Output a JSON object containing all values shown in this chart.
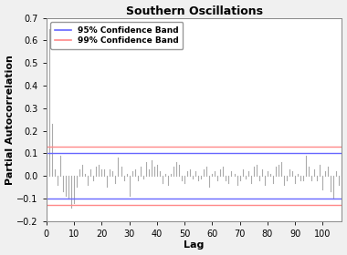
{
  "title": "Southern Oscillations",
  "xlabel": "Lag",
  "ylabel": "Partial Autocorrelation",
  "ylim": [
    -0.2,
    0.7
  ],
  "xlim": [
    0,
    107
  ],
  "yticks": [
    -0.2,
    -0.1,
    0.0,
    0.1,
    0.2,
    0.3,
    0.4,
    0.5,
    0.6,
    0.7
  ],
  "xticks": [
    0,
    10,
    20,
    30,
    40,
    50,
    60,
    70,
    80,
    90,
    100
  ],
  "conf_95": 0.1,
  "conf_99": 0.13,
  "conf_95_color": "#6666ff",
  "conf_99_color": "#ff8888",
  "bar_color": "#aaaaaa",
  "bg_color": "#f0f0f0",
  "plot_bg": "#ffffff",
  "title_fontsize": 9,
  "label_fontsize": 8,
  "tick_fontsize": 7,
  "pacf_values": [
    0.65,
    0.23,
    0.03,
    -0.04,
    0.09,
    -0.07,
    -0.09,
    -0.1,
    -0.14,
    -0.12,
    -0.05,
    0.03,
    0.05,
    0.01,
    -0.04,
    0.03,
    -0.02,
    0.04,
    0.05,
    0.03,
    0.03,
    -0.05,
    0.03,
    0.02,
    -0.03,
    0.08,
    0.04,
    -0.02,
    0.01,
    -0.09,
    0.02,
    0.03,
    -0.02,
    0.04,
    -0.01,
    0.06,
    0.03,
    0.07,
    0.04,
    0.05,
    0.02,
    -0.03,
    0.01,
    -0.04,
    0.01,
    0.04,
    0.06,
    0.05,
    -0.02,
    -0.03,
    0.02,
    0.03,
    -0.01,
    0.02,
    -0.02,
    -0.01,
    0.03,
    0.04,
    -0.05,
    0.01,
    0.02,
    -0.02,
    0.03,
    0.04,
    -0.02,
    -0.03,
    0.02,
    0.01,
    -0.04,
    -0.02,
    0.03,
    -0.01,
    0.02,
    -0.03,
    0.04,
    0.05,
    -0.02,
    0.03,
    -0.04,
    0.02,
    0.01,
    -0.03,
    0.04,
    0.05,
    0.06,
    -0.04,
    -0.02,
    0.03,
    0.02,
    -0.03,
    0.01,
    -0.02,
    -0.02,
    0.09,
    0.04,
    -0.02,
    0.03,
    -0.02,
    0.05,
    -0.06,
    0.02,
    0.04,
    -0.07,
    -0.1,
    0.02,
    -0.04,
    0.03
  ]
}
